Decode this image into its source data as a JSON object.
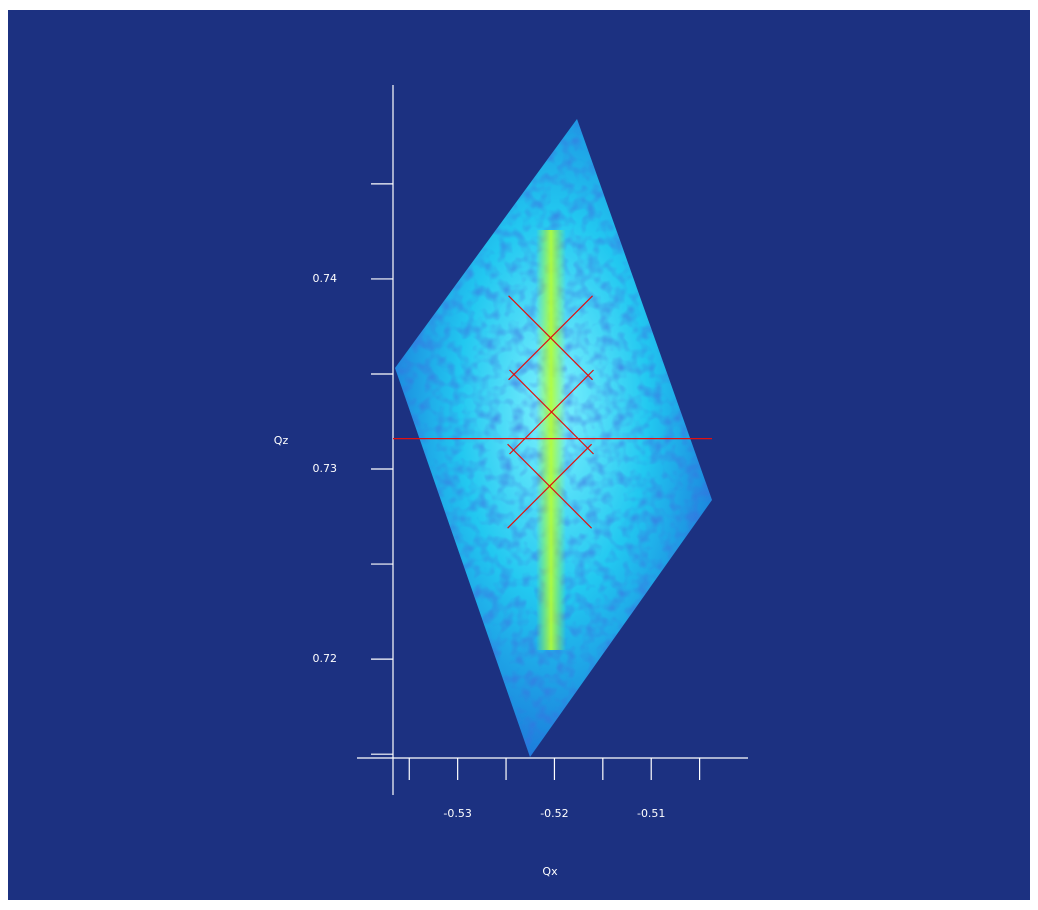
{
  "chart_data": {
    "type": "rsm",
    "xlabel": "Qx",
    "ylabel": "Qz",
    "xlim": [
      -0.5404,
      -0.5
    ],
    "ylim": [
      0.7148,
      0.7502
    ],
    "xticks": [
      -0.53,
      -0.52,
      -0.51
    ],
    "yticks": [
      0.72,
      0.73,
      0.74
    ],
    "xminorticks": [
      -0.535,
      -0.525,
      -0.515,
      -0.505
    ],
    "yminorticks": [
      0.715,
      0.725,
      0.735,
      0.745
    ],
    "peaks": {
      "x": [
        -0.5204,
        -0.5203,
        -0.5205
      ],
      "y": [
        0.7369,
        0.733,
        0.7291
      ]
    },
    "hline": 0.7316,
    "marker_color": "#e01010"
  }
}
